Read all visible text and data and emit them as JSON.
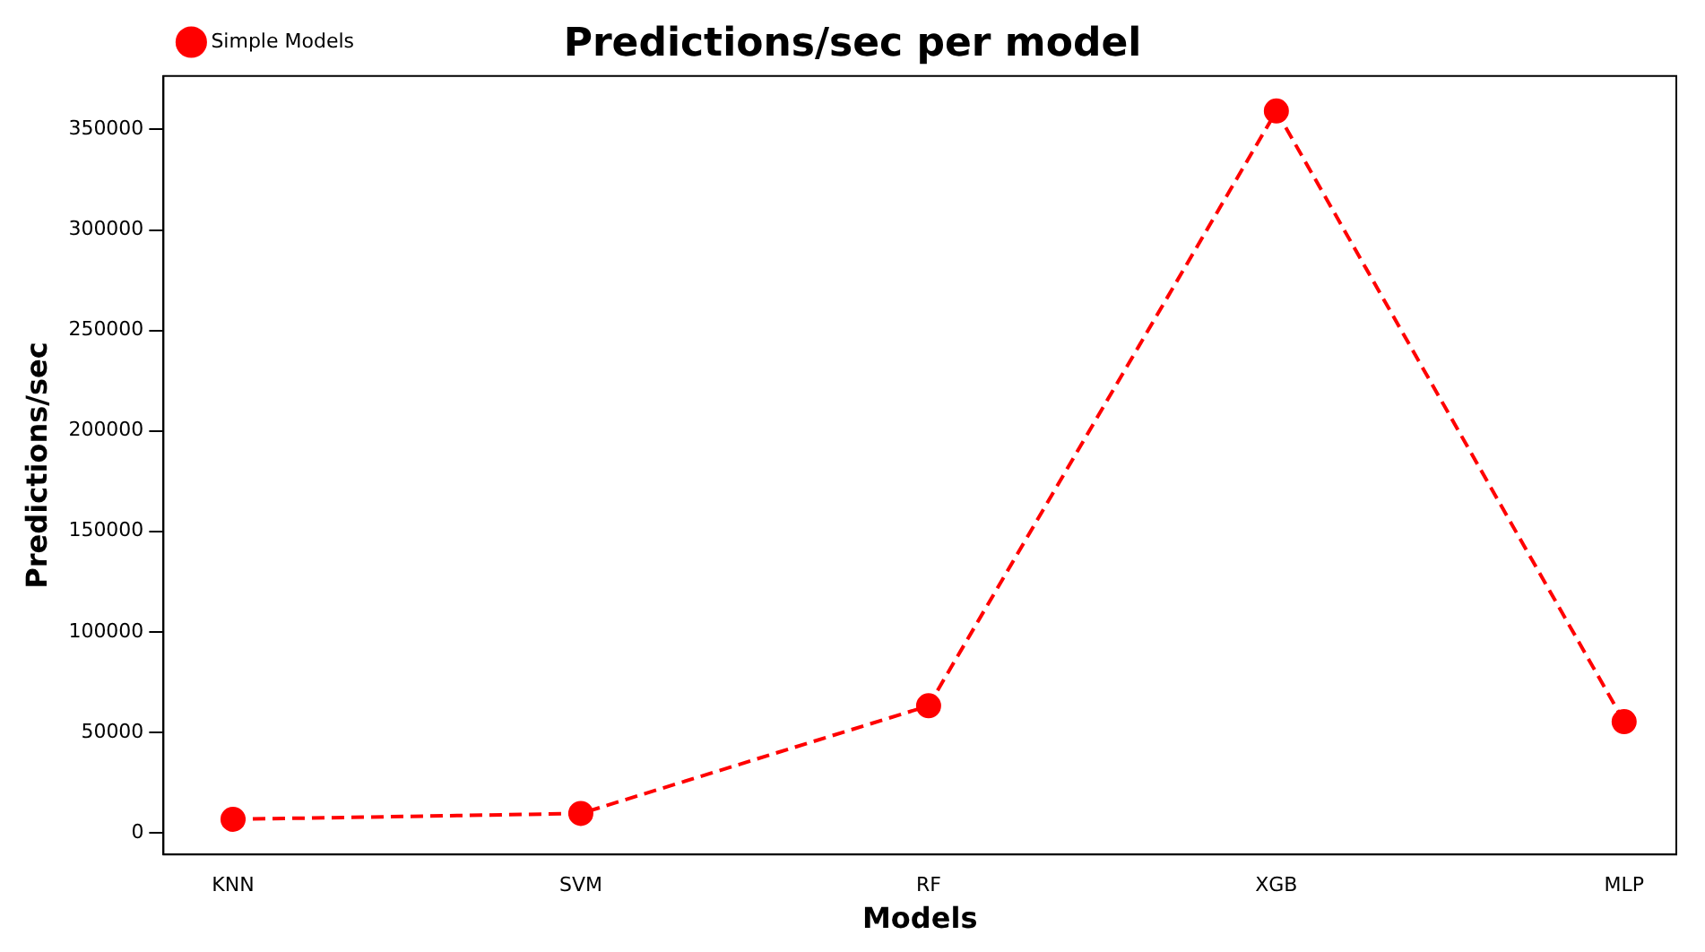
{
  "chart_data": {
    "type": "line",
    "title": "Predictions/sec per model",
    "xlabel": "Models",
    "ylabel": "Predictions/sec",
    "categories": [
      "KNN",
      "SVM",
      "RF",
      "XGB",
      "MLP"
    ],
    "series": [
      {
        "name": "Simple Models",
        "color": "#ff0000",
        "values": [
          6700,
          9600,
          63200,
          359200,
          55300
        ]
      }
    ],
    "ylim": [
      -10800,
      376600
    ],
    "yticks": [
      0,
      50000,
      100000,
      150000,
      200000,
      250000,
      300000,
      350000
    ],
    "grid": false,
    "legend": "top left",
    "marker": "circle",
    "line_style": "dashed"
  }
}
